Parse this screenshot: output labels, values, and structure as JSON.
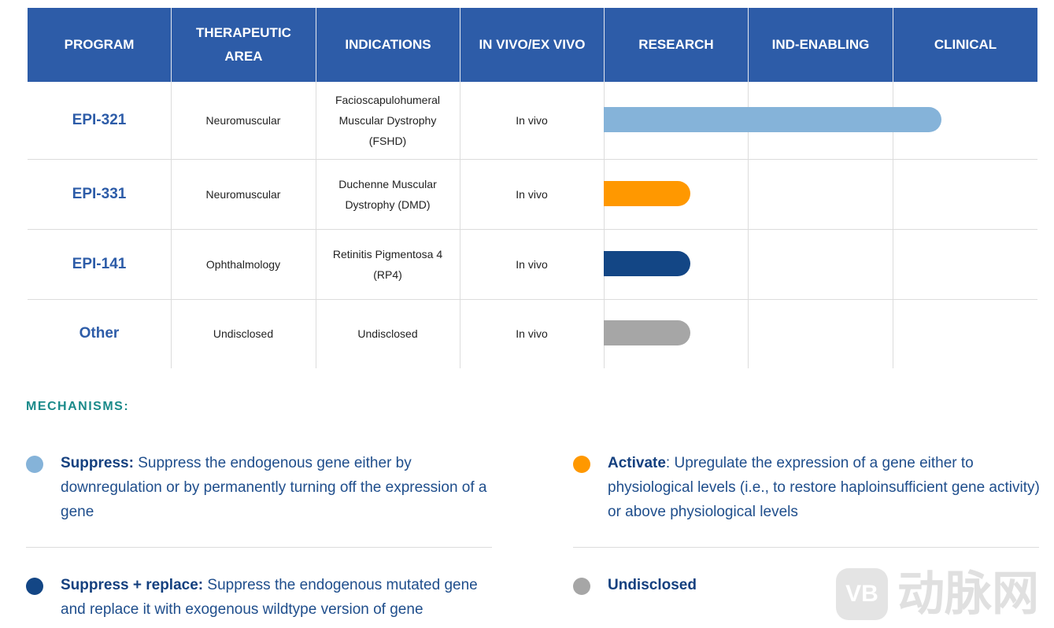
{
  "table": {
    "headers": [
      "PROGRAM",
      "THERAPEUTIC AREA",
      "INDICATIONS",
      "IN VIVO/EX VIVO",
      "RESEARCH",
      "IND-ENABLING",
      "CLINICAL"
    ],
    "rows": [
      [
        "EPI-321",
        "Neuromuscular",
        "Facioscapulohumeral Muscular Dystrophy (FSHD)",
        "In vivo"
      ],
      [
        "EPI-331",
        "Neuromuscular",
        "Duchenne Muscular Dystrophy (DMD)",
        "In vivo"
      ],
      [
        "EPI-141",
        "Ophthalmology",
        "Retinitis Pigmentosa 4 (RP4)",
        "In vivo"
      ],
      [
        "Other",
        "Undisclosed",
        "Undisclosed",
        "In vivo"
      ]
    ]
  },
  "mechanisms": {
    "title": "MECHANISMS:",
    "items": [
      {
        "name": "Suppress:",
        "description": " Suppress the endogenous gene either by downregulation or by permanently turning off the expression of a gene"
      },
      {
        "name": "Activate",
        "description": ": Upregulate the expression of a gene either to physiological levels (i.e., to restore haploinsufficient gene activity) or above physiological levels"
      },
      {
        "name": "Suppress + replace:",
        "description": " Suppress the endogenous mutated gene and replace it with exogenous wildtype version of gene"
      },
      {
        "name": "Undisclosed",
        "description": ""
      }
    ]
  },
  "watermark": {
    "logo": "VB",
    "text": "动脉网"
  }
}
